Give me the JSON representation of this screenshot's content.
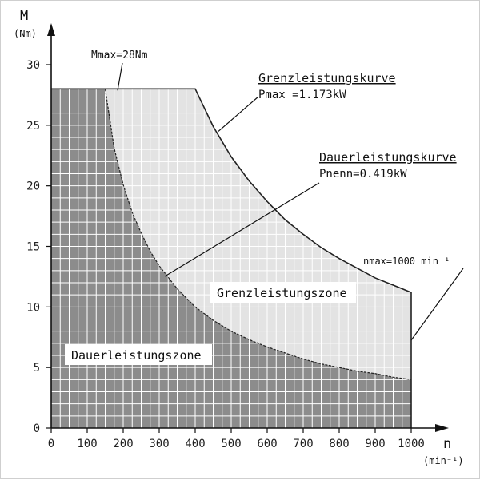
{
  "chart_data": {
    "type": "area",
    "y_axis": {
      "symbol": "M",
      "unit": "(Nm)",
      "ticks": [
        0,
        5,
        10,
        15,
        20,
        25,
        30
      ],
      "range": [
        0,
        30
      ]
    },
    "x_axis": {
      "symbol": "n",
      "unit": "(min⁻¹)",
      "ticks": [
        0,
        100,
        200,
        300,
        400,
        500,
        600,
        700,
        800,
        900,
        1000
      ],
      "range": [
        0,
        1000
      ]
    },
    "grid": true,
    "colors": {
      "dauer_zone": "#8c8c8c",
      "grenz_zone": "#e3e3e3",
      "grid_line": "#ffffff",
      "outline": "#222222"
    },
    "series": [
      {
        "name": "Grenzleistungskurve",
        "x": [
          0,
          400,
          450,
          500,
          550,
          600,
          650,
          700,
          750,
          800,
          850,
          900,
          950,
          1000
        ],
        "y": [
          28,
          28,
          24.9,
          22.4,
          20.4,
          18.7,
          17.2,
          16.0,
          14.9,
          14.0,
          13.2,
          12.4,
          11.8,
          11.2
        ]
      },
      {
        "name": "Dauerleistungskurve",
        "x": [
          0,
          150,
          175,
          200,
          225,
          250,
          275,
          300,
          350,
          400,
          450,
          500,
          550,
          600,
          650,
          700,
          750,
          800,
          850,
          900,
          950,
          1000
        ],
        "y": [
          28,
          28,
          23.1,
          20.1,
          17.8,
          16.1,
          14.6,
          13.4,
          11.5,
          10.0,
          8.9,
          8.0,
          7.3,
          6.7,
          6.2,
          5.7,
          5.3,
          5.0,
          4.7,
          4.5,
          4.2,
          4.0
        ]
      }
    ],
    "annotations": {
      "mmax": "Mmax=28Nm",
      "grenz_title": "Grenzleistungskurve",
      "grenz_value": "Pmax =1.173kW",
      "dauer_title": "Dauerleistungskurve",
      "dauer_value": "Pnenn=0.419kW",
      "nmax": "nmax=1000 min⁻¹",
      "grenz_zone": "Grenzleistungszone",
      "dauer_zone": "Dauerleistungszone"
    }
  }
}
